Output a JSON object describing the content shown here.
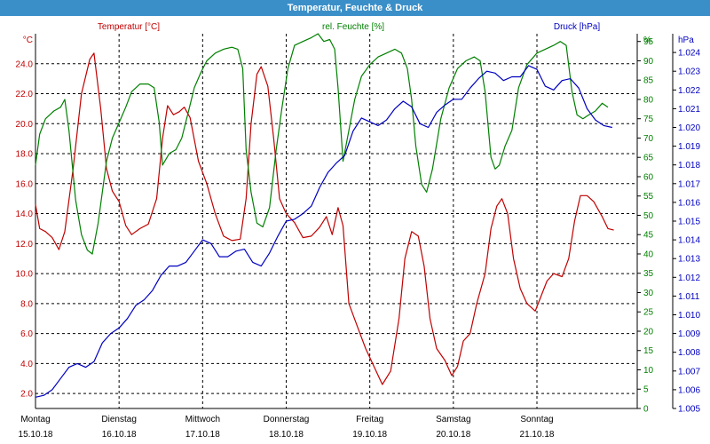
{
  "window": {
    "title": "Temperatur, Feuchte & Druck"
  },
  "colors": {
    "temperature": "#c00000",
    "humidity": "#008000",
    "pressure": "#0000c0",
    "titlebar": "#3a8fc8"
  },
  "chart_data": {
    "type": "line",
    "title": "Temperatur, Feuchte & Druck",
    "grid": true,
    "x": {
      "range_days": [
        0,
        7.2
      ],
      "tick_days": [
        0,
        1,
        2,
        3,
        4,
        5,
        6
      ],
      "tick_labels": [
        {
          "day": "Montag",
          "date": "15.10.18"
        },
        {
          "day": "Dienstag",
          "date": "16.10.18"
        },
        {
          "day": "Mittwoch",
          "date": "17.10.18"
        },
        {
          "day": "Donnerstag",
          "date": "18.10.18"
        },
        {
          "day": "Freitag",
          "date": "19.10.18"
        },
        {
          "day": "Samstag",
          "date": "20.10.18"
        },
        {
          "day": "Sonntag",
          "date": "21.10.18"
        }
      ]
    },
    "axes": {
      "temperature": {
        "label": "Temperatur [°C]",
        "unit": "°C",
        "range": [
          1.0,
          26.0
        ],
        "ticks": [
          "2.0",
          "4.0",
          "6.0",
          "8.0",
          "10.0",
          "12.0",
          "14.0",
          "16.0",
          "18.0",
          "20.0",
          "22.0",
          "24.0"
        ]
      },
      "humidity": {
        "label": "rel. Feuchte [%]",
        "unit": "%",
        "range": [
          0,
          97
        ],
        "ticks": [
          "0",
          "5",
          "10",
          "15",
          "20",
          "25",
          "30",
          "35",
          "40",
          "45",
          "50",
          "55",
          "60",
          "65",
          "70",
          "75",
          "80",
          "85",
          "90",
          "95"
        ]
      },
      "pressure": {
        "label": "Druck [hPa]",
        "unit": "hPa",
        "range": [
          1.005,
          1.025
        ],
        "ticks": [
          "1.005",
          "1.006",
          "1.007",
          "1.008",
          "1.009",
          "1.010",
          "1.011",
          "1.012",
          "1.013",
          "1.014",
          "1.015",
          "1.016",
          "1.017",
          "1.018",
          "1.019",
          "1.020",
          "1.021",
          "1.022",
          "1.023",
          "1.024"
        ]
      }
    },
    "series": [
      {
        "name": "Temperatur [°C]",
        "axis": "temperature",
        "points": [
          [
            0.0,
            14.6
          ],
          [
            0.05,
            13.0
          ],
          [
            0.12,
            12.8
          ],
          [
            0.2,
            12.4
          ],
          [
            0.28,
            11.6
          ],
          [
            0.35,
            12.8
          ],
          [
            0.45,
            17.0
          ],
          [
            0.55,
            22.0
          ],
          [
            0.65,
            24.3
          ],
          [
            0.7,
            24.7
          ],
          [
            0.78,
            21.0
          ],
          [
            0.85,
            17.0
          ],
          [
            0.92,
            15.5
          ],
          [
            1.0,
            14.8
          ],
          [
            1.08,
            13.2
          ],
          [
            1.15,
            12.6
          ],
          [
            1.25,
            13.0
          ],
          [
            1.35,
            13.3
          ],
          [
            1.45,
            15.0
          ],
          [
            1.52,
            19.0
          ],
          [
            1.58,
            21.2
          ],
          [
            1.65,
            20.6
          ],
          [
            1.72,
            20.8
          ],
          [
            1.78,
            21.1
          ],
          [
            1.85,
            20.4
          ],
          [
            1.95,
            17.5
          ],
          [
            2.05,
            16.0
          ],
          [
            2.15,
            14.0
          ],
          [
            2.25,
            12.5
          ],
          [
            2.35,
            12.2
          ],
          [
            2.45,
            12.3
          ],
          [
            2.52,
            15.0
          ],
          [
            2.58,
            20.0
          ],
          [
            2.65,
            23.3
          ],
          [
            2.7,
            23.8
          ],
          [
            2.78,
            22.5
          ],
          [
            2.85,
            19.0
          ],
          [
            2.92,
            15.0
          ],
          [
            3.0,
            14.0
          ],
          [
            3.1,
            13.4
          ],
          [
            3.2,
            12.4
          ],
          [
            3.3,
            12.5
          ],
          [
            3.4,
            13.1
          ],
          [
            3.48,
            13.8
          ],
          [
            3.55,
            12.6
          ],
          [
            3.62,
            14.4
          ],
          [
            3.68,
            13.2
          ],
          [
            3.75,
            8.0
          ],
          [
            3.85,
            6.5
          ],
          [
            3.95,
            5.0
          ],
          [
            4.05,
            3.8
          ],
          [
            4.15,
            2.6
          ],
          [
            4.25,
            3.5
          ],
          [
            4.35,
            7.0
          ],
          [
            4.42,
            11.0
          ],
          [
            4.5,
            12.8
          ],
          [
            4.58,
            12.5
          ],
          [
            4.65,
            10.5
          ],
          [
            4.72,
            7.0
          ],
          [
            4.8,
            5.0
          ],
          [
            4.9,
            4.2
          ],
          [
            4.98,
            3.2
          ],
          [
            5.05,
            3.8
          ],
          [
            5.12,
            5.5
          ],
          [
            5.2,
            6.0
          ],
          [
            5.28,
            8.0
          ],
          [
            5.38,
            10.0
          ],
          [
            5.45,
            13.0
          ],
          [
            5.52,
            14.5
          ],
          [
            5.58,
            15.0
          ],
          [
            5.65,
            14.0
          ],
          [
            5.72,
            11.0
          ],
          [
            5.8,
            9.0
          ],
          [
            5.88,
            8.0
          ],
          [
            5.98,
            7.5
          ],
          [
            6.05,
            8.5
          ],
          [
            6.12,
            9.5
          ],
          [
            6.2,
            10.0
          ],
          [
            6.3,
            9.8
          ],
          [
            6.38,
            11.0
          ],
          [
            6.45,
            13.5
          ],
          [
            6.52,
            15.2
          ],
          [
            6.6,
            15.2
          ],
          [
            6.68,
            14.8
          ],
          [
            6.78,
            13.8
          ],
          [
            6.85,
            13.0
          ],
          [
            6.92,
            12.9
          ]
        ]
      },
      {
        "name": "rel. Feuchte [%]",
        "axis": "humidity",
        "points": [
          [
            0.0,
            63
          ],
          [
            0.05,
            71
          ],
          [
            0.12,
            75
          ],
          [
            0.22,
            77
          ],
          [
            0.3,
            78
          ],
          [
            0.35,
            80
          ],
          [
            0.4,
            72
          ],
          [
            0.48,
            54
          ],
          [
            0.55,
            45
          ],
          [
            0.62,
            41
          ],
          [
            0.68,
            40
          ],
          [
            0.75,
            48
          ],
          [
            0.85,
            64
          ],
          [
            0.92,
            70
          ],
          [
            1.0,
            74
          ],
          [
            1.08,
            78
          ],
          [
            1.15,
            82
          ],
          [
            1.25,
            84
          ],
          [
            1.35,
            84
          ],
          [
            1.42,
            83
          ],
          [
            1.48,
            74
          ],
          [
            1.52,
            63
          ],
          [
            1.6,
            66
          ],
          [
            1.68,
            67
          ],
          [
            1.75,
            70
          ],
          [
            1.82,
            76
          ],
          [
            1.9,
            83
          ],
          [
            1.98,
            87
          ],
          [
            2.05,
            90
          ],
          [
            2.15,
            92
          ],
          [
            2.25,
            93
          ],
          [
            2.35,
            93.5
          ],
          [
            2.42,
            93
          ],
          [
            2.48,
            88
          ],
          [
            2.52,
            67
          ],
          [
            2.58,
            56
          ],
          [
            2.65,
            48
          ],
          [
            2.72,
            47
          ],
          [
            2.8,
            52
          ],
          [
            2.88,
            67
          ],
          [
            2.95,
            78
          ],
          [
            3.02,
            88
          ],
          [
            3.1,
            94
          ],
          [
            3.2,
            95
          ],
          [
            3.3,
            96
          ],
          [
            3.38,
            97
          ],
          [
            3.45,
            95
          ],
          [
            3.52,
            95.5
          ],
          [
            3.58,
            93
          ],
          [
            3.62,
            83
          ],
          [
            3.68,
            64
          ],
          [
            3.75,
            72
          ],
          [
            3.82,
            80
          ],
          [
            3.9,
            86
          ],
          [
            4.0,
            89
          ],
          [
            4.1,
            91
          ],
          [
            4.2,
            92
          ],
          [
            4.3,
            93
          ],
          [
            4.38,
            92
          ],
          [
            4.45,
            88
          ],
          [
            4.5,
            80
          ],
          [
            4.55,
            68
          ],
          [
            4.62,
            58
          ],
          [
            4.68,
            56
          ],
          [
            4.75,
            62
          ],
          [
            4.85,
            75
          ],
          [
            4.95,
            83
          ],
          [
            5.05,
            88
          ],
          [
            5.15,
            90
          ],
          [
            5.25,
            91
          ],
          [
            5.32,
            90
          ],
          [
            5.38,
            82
          ],
          [
            5.45,
            65
          ],
          [
            5.5,
            62
          ],
          [
            5.55,
            63
          ],
          [
            5.62,
            68
          ],
          [
            5.7,
            72
          ],
          [
            5.78,
            83
          ],
          [
            5.88,
            89
          ],
          [
            6.0,
            92
          ],
          [
            6.1,
            93
          ],
          [
            6.2,
            94
          ],
          [
            6.28,
            95
          ],
          [
            6.35,
            94
          ],
          [
            6.42,
            82
          ],
          [
            6.48,
            76
          ],
          [
            6.55,
            75
          ],
          [
            6.62,
            76
          ],
          [
            6.7,
            77
          ],
          [
            6.78,
            79
          ],
          [
            6.85,
            78
          ]
        ]
      },
      {
        "name": "Druck [hPa]",
        "axis": "pressure",
        "points": [
          [
            0.0,
            1.0056
          ],
          [
            0.1,
            1.0057
          ],
          [
            0.2,
            1.006
          ],
          [
            0.3,
            1.0066
          ],
          [
            0.4,
            1.0072
          ],
          [
            0.5,
            1.0074
          ],
          [
            0.6,
            1.0072
          ],
          [
            0.7,
            1.0075
          ],
          [
            0.8,
            1.0085
          ],
          [
            0.9,
            1.009
          ],
          [
            1.0,
            1.0093
          ],
          [
            1.1,
            1.0098
          ],
          [
            1.2,
            1.0105
          ],
          [
            1.3,
            1.0108
          ],
          [
            1.4,
            1.0113
          ],
          [
            1.5,
            1.0121
          ],
          [
            1.6,
            1.0126
          ],
          [
            1.7,
            1.0126
          ],
          [
            1.8,
            1.0128
          ],
          [
            1.9,
            1.0134
          ],
          [
            2.0,
            1.014
          ],
          [
            2.1,
            1.0138
          ],
          [
            2.2,
            1.0131
          ],
          [
            2.3,
            1.0131
          ],
          [
            2.4,
            1.0134
          ],
          [
            2.5,
            1.0135
          ],
          [
            2.6,
            1.0128
          ],
          [
            2.7,
            1.0126
          ],
          [
            2.8,
            1.0133
          ],
          [
            2.9,
            1.0142
          ],
          [
            3.0,
            1.015
          ],
          [
            3.1,
            1.0151
          ],
          [
            3.2,
            1.0154
          ],
          [
            3.3,
            1.0158
          ],
          [
            3.4,
            1.0168
          ],
          [
            3.5,
            1.0176
          ],
          [
            3.6,
            1.0181
          ],
          [
            3.7,
            1.0185
          ],
          [
            3.8,
            1.0198
          ],
          [
            3.9,
            1.0205
          ],
          [
            4.0,
            1.0203
          ],
          [
            4.1,
            1.0201
          ],
          [
            4.2,
            1.0204
          ],
          [
            4.3,
            1.021
          ],
          [
            4.4,
            1.0214
          ],
          [
            4.5,
            1.0211
          ],
          [
            4.6,
            1.0202
          ],
          [
            4.7,
            1.02
          ],
          [
            4.8,
            1.0208
          ],
          [
            4.9,
            1.0212
          ],
          [
            5.0,
            1.0215
          ],
          [
            5.1,
            1.0215
          ],
          [
            5.2,
            1.0221
          ],
          [
            5.3,
            1.0226
          ],
          [
            5.4,
            1.023
          ],
          [
            5.5,
            1.0229
          ],
          [
            5.6,
            1.0225
          ],
          [
            5.7,
            1.0227
          ],
          [
            5.8,
            1.0227
          ],
          [
            5.9,
            1.0233
          ],
          [
            6.0,
            1.0231
          ],
          [
            6.1,
            1.0222
          ],
          [
            6.2,
            1.022
          ],
          [
            6.3,
            1.0225
          ],
          [
            6.4,
            1.0226
          ],
          [
            6.5,
            1.0221
          ],
          [
            6.6,
            1.021
          ],
          [
            6.7,
            1.0204
          ],
          [
            6.8,
            1.0201
          ],
          [
            6.9,
            1.02
          ]
        ]
      }
    ]
  }
}
